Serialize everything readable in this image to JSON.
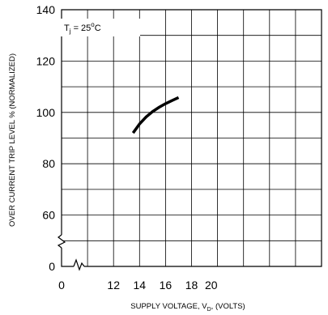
{
  "chart_data": {
    "type": "line",
    "xlabel": {
      "main": "SUPPLY VOLTAGE, V",
      "sub": "D",
      "tail": ", (VOLTS)"
    },
    "ylabel": "OVER CURRENT TRIP LEVEL % (NORMALIZED)",
    "condition": {
      "main": "T",
      "sub": "j",
      "mid": " = 25",
      "sup": "o",
      "tail": "C"
    },
    "x_ticks": [
      "0",
      "12",
      "14",
      "16",
      "18",
      "20"
    ],
    "y_ticks": [
      "0",
      "60",
      "80",
      "100",
      "120",
      "140"
    ],
    "x_range": [
      10,
      20
    ],
    "y_range": [
      50,
      140
    ],
    "axis_breaks": [
      "x",
      "y"
    ],
    "grid": true,
    "series": [
      {
        "x": [
          13.5,
          14.0,
          14.5,
          15.0,
          15.5,
          16.0,
          16.5,
          17.0
        ],
        "y": [
          92,
          95.5,
          98.2,
          100.3,
          102.0,
          103.4,
          104.6,
          105.8
        ]
      }
    ]
  }
}
